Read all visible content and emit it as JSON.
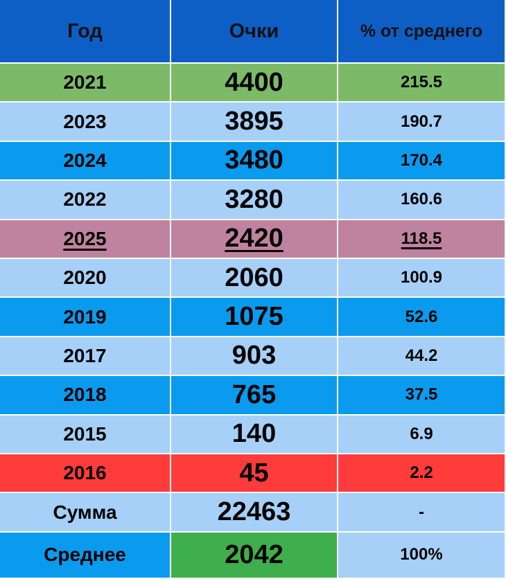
{
  "table": {
    "header": [
      "Год",
      "Очки",
      "% от среднего"
    ],
    "rows": [
      [
        "2021",
        "4400",
        "215.5"
      ],
      [
        "2023",
        "3895",
        "190.7"
      ],
      [
        "2024",
        "3480",
        "170.4"
      ],
      [
        "2022",
        "3280",
        "160.6"
      ],
      [
        "2025",
        "2420",
        "118.5"
      ],
      [
        "2020",
        "2060",
        "100.9"
      ],
      [
        "2019",
        "1075",
        "52.6"
      ],
      [
        "2017",
        "903",
        "44.2"
      ],
      [
        "2018",
        "765",
        "37.5"
      ],
      [
        "2015",
        "140",
        "6.9"
      ],
      [
        "2016",
        "45",
        "2.2"
      ],
      [
        "Сумма",
        "22463",
        "-"
      ],
      [
        "Среднее",
        "2042",
        "100%"
      ]
    ]
  }
}
